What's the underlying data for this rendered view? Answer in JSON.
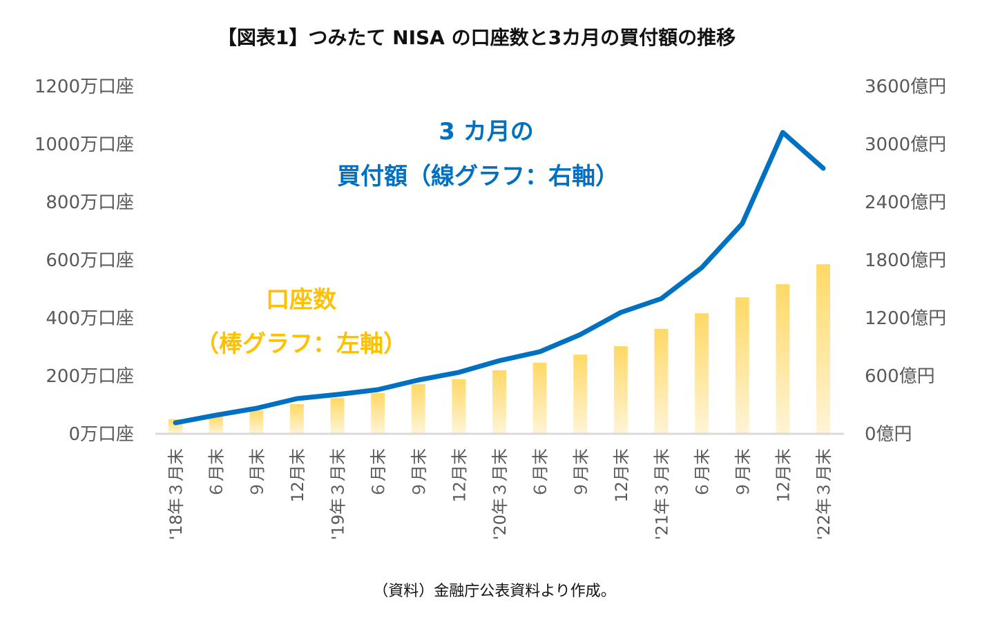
{
  "chart_data": {
    "type": "bar+line",
    "title": "【図表1】つみたて NISA の口座数と3カ月の買付額の推移",
    "categories": [
      "'18年３月末",
      "６月末",
      "９月末",
      "12月末",
      "'19年３月末",
      "６月末",
      "９月末",
      "12月末",
      "'20年３月末",
      "６月末",
      "９月末",
      "12月末",
      "'21年３月末",
      "６月末",
      "９月末",
      "12月末",
      "'22年３月末"
    ],
    "series": [
      {
        "name": "口座数",
        "kind": "bar",
        "axis": "left",
        "unit": "万口座",
        "values": [
          48,
          57,
          79,
          100,
          121,
          138,
          169,
          186,
          217,
          243,
          271,
          300,
          360,
          414,
          469,
          514,
          583
        ]
      },
      {
        "name": "3カ月の買付額",
        "kind": "line",
        "axis": "right",
        "unit": "億円",
        "values": [
          107,
          186,
          257,
          357,
          400,
          450,
          550,
          629,
          750,
          843,
          1021,
          1250,
          1393,
          1714,
          2171,
          3114,
          2743
        ]
      }
    ],
    "left_axis": {
      "ylim": [
        0,
        1200
      ],
      "ticks": [
        "0万口座",
        "200万口座",
        "400万口座",
        "600万口座",
        "800万口座",
        "1000万口座",
        "1200万口座"
      ]
    },
    "right_axis": {
      "ylim": [
        0,
        3600
      ],
      "ticks": [
        "0億円",
        "600億円",
        "1200億円",
        "1800億円",
        "2400億円",
        "3000億円",
        "3600億円"
      ]
    },
    "annotations": {
      "line_label": [
        "3 カ月の",
        "買付額（線グラフ：右軸）"
      ],
      "bar_label": [
        "口座数",
        "（棒グラフ：左軸）"
      ]
    },
    "source": "（資料）金融庁公表資料より作成。",
    "grid": false,
    "legend": "none",
    "colors": {
      "line": "#0070c0",
      "bar_top": "#ffd966",
      "bar_bottom": "#fff4d6",
      "bar_label": "#ffc000",
      "axis": "#d9d9d9"
    }
  }
}
